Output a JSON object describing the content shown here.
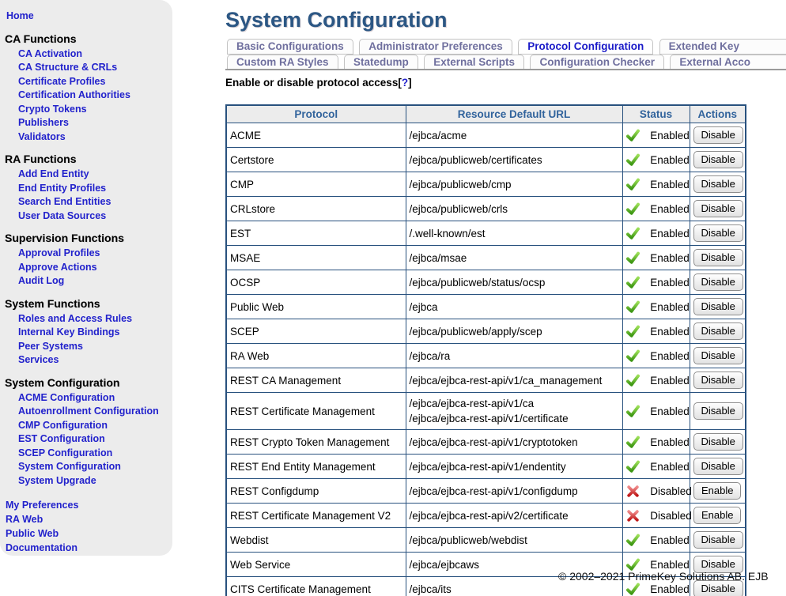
{
  "sidebar": {
    "home": "Home",
    "sections": [
      {
        "header": "CA Functions",
        "items": [
          {
            "label": "CA Activation"
          },
          {
            "label": "CA Structure & CRLs"
          },
          {
            "label": "Certificate Profiles"
          },
          {
            "label": "Certification Authorities"
          },
          {
            "label": "Crypto Tokens"
          },
          {
            "label": "Publishers"
          },
          {
            "label": "Validators"
          }
        ]
      },
      {
        "header": "RA Functions",
        "items": [
          {
            "label": "Add End Entity"
          },
          {
            "label": "End Entity Profiles"
          },
          {
            "label": "Search End Entities"
          },
          {
            "label": "User Data Sources"
          }
        ]
      },
      {
        "header": "Supervision Functions",
        "items": [
          {
            "label": "Approval Profiles"
          },
          {
            "label": "Approve Actions"
          },
          {
            "label": "Audit Log"
          }
        ]
      },
      {
        "header": "System Functions",
        "items": [
          {
            "label": "Roles and Access Rules"
          },
          {
            "label": "Internal Key Bindings"
          },
          {
            "label": "Peer Systems"
          },
          {
            "label": "Services"
          }
        ]
      },
      {
        "header": "System Configuration",
        "items": [
          {
            "label": "ACME Configuration"
          },
          {
            "label": "Autoenrollment Configuration"
          },
          {
            "label": "CMP Configuration"
          },
          {
            "label": "EST Configuration"
          },
          {
            "label": "SCEP Configuration"
          },
          {
            "label": "System Configuration"
          },
          {
            "label": "System Upgrade"
          }
        ]
      }
    ],
    "footer_links": [
      {
        "label": "My Preferences"
      },
      {
        "label": "RA Web"
      },
      {
        "label": "Public Web"
      },
      {
        "label": "Documentation"
      }
    ]
  },
  "header": {
    "title": "System Configuration"
  },
  "tabs": {
    "row1": [
      {
        "label": "Basic Configurations",
        "selected": false,
        "clipped": false
      },
      {
        "label": "Administrator Preferences",
        "selected": false,
        "clipped": false
      },
      {
        "label": "Protocol Configuration",
        "selected": true,
        "clipped": false
      },
      {
        "label": "Extended Key",
        "selected": false,
        "clipped": true
      }
    ],
    "row2": [
      {
        "label": "Custom RA Styles",
        "selected": false,
        "clipped": false
      },
      {
        "label": "Statedump",
        "selected": false,
        "clipped": false
      },
      {
        "label": "External Scripts",
        "selected": false,
        "clipped": false
      },
      {
        "label": "Configuration Checker",
        "selected": false,
        "clipped": false
      },
      {
        "label": "External Acco",
        "selected": false,
        "clipped": true
      }
    ]
  },
  "content": {
    "instruction": "Enable or disable protocol access",
    "help_open": "[",
    "help_q": "?",
    "help_close": "]"
  },
  "table": {
    "columns": [
      "Protocol",
      "Resource Default URL",
      "Status",
      "Actions"
    ],
    "rows": [
      {
        "protocol": "ACME",
        "urls": [
          "/ejbca/acme"
        ],
        "icon": "check",
        "status": "Enabled",
        "action": "Disable"
      },
      {
        "protocol": "Certstore",
        "urls": [
          "/ejbca/publicweb/certificates"
        ],
        "icon": "check",
        "status": "Enabled",
        "action": "Disable"
      },
      {
        "protocol": "CMP",
        "urls": [
          "/ejbca/publicweb/cmp"
        ],
        "icon": "check",
        "status": "Enabled",
        "action": "Disable"
      },
      {
        "protocol": "CRLstore",
        "urls": [
          "/ejbca/publicweb/crls"
        ],
        "icon": "check",
        "status": "Enabled",
        "action": "Disable"
      },
      {
        "protocol": "EST",
        "urls": [
          "/.well-known/est"
        ],
        "icon": "check",
        "status": "Enabled",
        "action": "Disable"
      },
      {
        "protocol": "MSAE",
        "urls": [
          "/ejbca/msae"
        ],
        "icon": "check",
        "status": "Enabled",
        "action": "Disable"
      },
      {
        "protocol": "OCSP",
        "urls": [
          "/ejbca/publicweb/status/ocsp"
        ],
        "icon": "check",
        "status": "Enabled",
        "action": "Disable"
      },
      {
        "protocol": "Public Web",
        "urls": [
          "/ejbca"
        ],
        "icon": "check",
        "status": "Enabled",
        "action": "Disable"
      },
      {
        "protocol": "SCEP",
        "urls": [
          "/ejbca/publicweb/apply/scep"
        ],
        "icon": "check",
        "status": "Enabled",
        "action": "Disable"
      },
      {
        "protocol": "RA Web",
        "urls": [
          "/ejbca/ra"
        ],
        "icon": "check",
        "status": "Enabled",
        "action": "Disable"
      },
      {
        "protocol": "REST CA Management",
        "urls": [
          "/ejbca/ejbca-rest-api/v1/ca_management"
        ],
        "icon": "check",
        "status": "Enabled",
        "action": "Disable"
      },
      {
        "protocol": "REST Certificate Management",
        "urls": [
          "/ejbca/ejbca-rest-api/v1/ca",
          "/ejbca/ejbca-rest-api/v1/certificate"
        ],
        "icon": "check",
        "status": "Enabled",
        "action": "Disable"
      },
      {
        "protocol": "REST Crypto Token Management",
        "urls": [
          "/ejbca/ejbca-rest-api/v1/cryptotoken"
        ],
        "icon": "check",
        "status": "Enabled",
        "action": "Disable"
      },
      {
        "protocol": "REST End Entity Management",
        "urls": [
          "/ejbca/ejbca-rest-api/v1/endentity"
        ],
        "icon": "check",
        "status": "Enabled",
        "action": "Disable"
      },
      {
        "protocol": "REST Configdump",
        "urls": [
          "/ejbca/ejbca-rest-api/v1/configdump"
        ],
        "icon": "cross",
        "status": "Disabled",
        "action": "Enable"
      },
      {
        "protocol": "REST Certificate Management V2",
        "urls": [
          "/ejbca/ejbca-rest-api/v2/certificate"
        ],
        "icon": "cross",
        "status": "Disabled",
        "action": "Enable"
      },
      {
        "protocol": "Webdist",
        "urls": [
          "/ejbca/publicweb/webdist"
        ],
        "icon": "check",
        "status": "Enabled",
        "action": "Disable"
      },
      {
        "protocol": "Web Service",
        "urls": [
          "/ejbca/ejbcaws"
        ],
        "icon": "check",
        "status": "Enabled",
        "action": "Disable"
      },
      {
        "protocol": "CITS Certificate Management",
        "urls": [
          "/ejbca/its"
        ],
        "icon": "check",
        "status": "Enabled",
        "action": "Disable"
      }
    ]
  },
  "footer": {
    "copyright": "© 2002–2021 PrimeKey Solutions AB. EJB"
  },
  "colors": {
    "title_blue": "#2c5784",
    "link_blue": "#2222cc",
    "selected_tab_blue": "#1a1ac8",
    "tab_gray_text": "#6f6f9e",
    "table_border_navy": "#28517e",
    "table_header_text": "#31639c",
    "enabled_green": "#41a317",
    "disabled_red": "#c81e1e",
    "sidebar_bg": "#ececec"
  }
}
